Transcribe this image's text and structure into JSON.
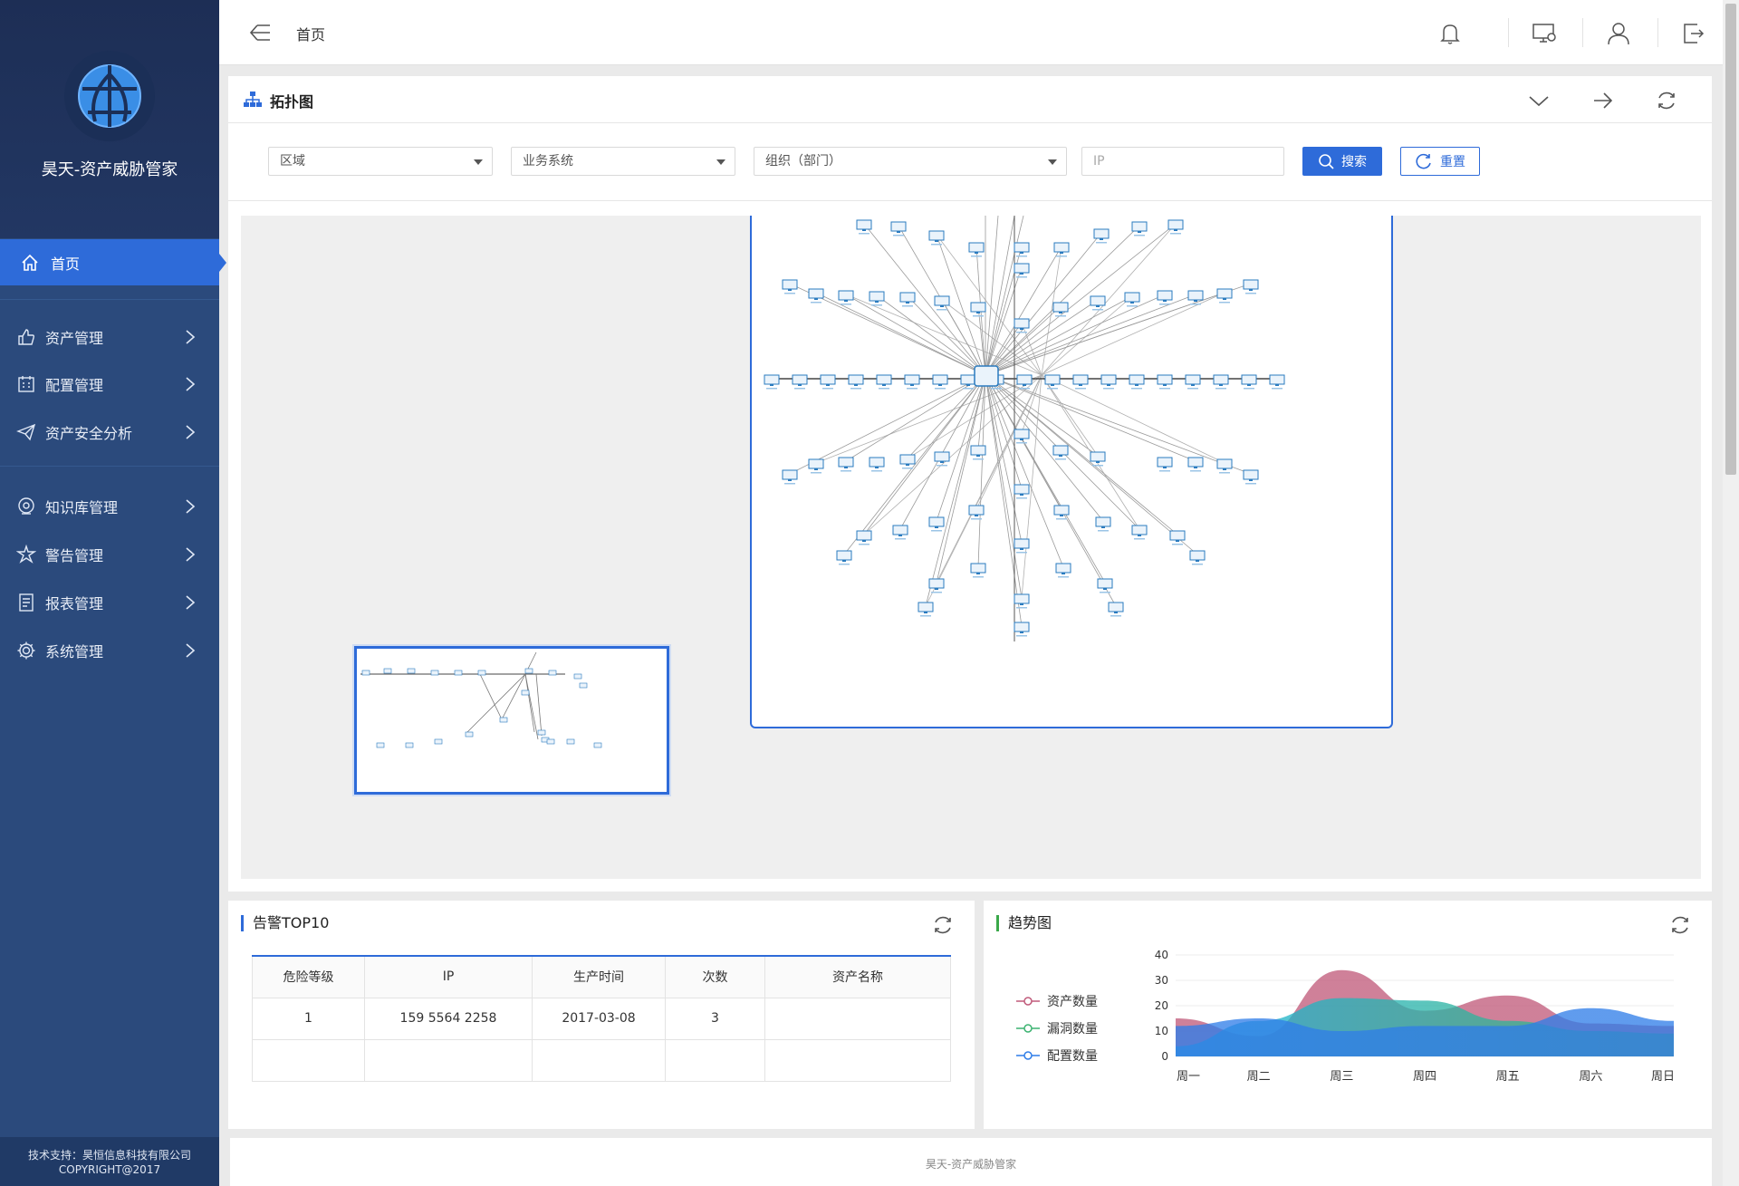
{
  "sidebar": {
    "brand_title": "昊天-资产威胁管家",
    "home_label": "首页",
    "items": [
      {
        "label": "资产管理",
        "icon": "thumbs-up-icon"
      },
      {
        "label": "配置管理",
        "icon": "calendar-icon"
      },
      {
        "label": "资产安全分析",
        "icon": "paper-plane-icon"
      },
      {
        "label": "知识库管理",
        "icon": "knowledge-icon"
      },
      {
        "label": "警告管理",
        "icon": "alert-icon"
      },
      {
        "label": "报表管理",
        "icon": "report-icon"
      },
      {
        "label": "系统管理",
        "icon": "gear-icon"
      }
    ],
    "footer_line1": "技术支持：昊恒信息科技有限公司",
    "footer_line2": "COPYRIGHT@2017"
  },
  "topbar": {
    "breadcrumb": "首页"
  },
  "topology": {
    "title": "拓扑图",
    "filters": {
      "region": "区域",
      "business_system": "业务系统",
      "organization": "组织（部门）",
      "ip_placeholder": "IP"
    },
    "search_label": "搜索",
    "reset_label": "重置"
  },
  "alerts": {
    "title": "告警TOP10",
    "columns": [
      "危险等级",
      "IP",
      "生产时间",
      "次数",
      "资产名称"
    ],
    "rows": [
      [
        "1",
        "159 5564  2258",
        "2017-03-08",
        "3",
        ""
      ],
      [
        "",
        "",
        "",
        "",
        ""
      ]
    ]
  },
  "trend": {
    "title": "趋势图",
    "legend": [
      "资产数量",
      "漏洞数量",
      "配置数量"
    ]
  },
  "chart_data": {
    "type": "area",
    "title": "趋势图",
    "categories": [
      "周一",
      "周二",
      "周三",
      "周四",
      "周五",
      "周六",
      "周日"
    ],
    "ylim": [
      0,
      40
    ],
    "yticks": [
      0,
      10,
      20,
      30,
      40
    ],
    "series": [
      {
        "name": "资产数量",
        "color": "#c05a7a",
        "values": [
          15,
          8,
          34,
          18,
          24,
          13,
          12
        ]
      },
      {
        "name": "漏洞数量",
        "color": "#3cb371",
        "values": [
          4,
          14,
          23,
          22,
          14,
          10,
          9
        ]
      },
      {
        "name": "配置数量",
        "color": "#2f7de8",
        "values": [
          12,
          15,
          10,
          12,
          12,
          19,
          14
        ]
      }
    ],
    "grid": true,
    "legend_position": "left"
  },
  "footer": {
    "text": "昊天-资产威胁管家"
  },
  "colors": {
    "primary": "#2e6bd9",
    "sidebar": "#2b4a7c"
  }
}
